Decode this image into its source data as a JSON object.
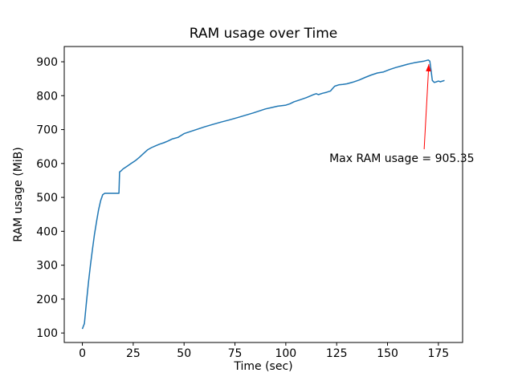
{
  "figure": {
    "title": "RAM usage over Time"
  },
  "chart_data": {
    "type": "line",
    "title": "RAM usage over Time",
    "xlabel": "Time (sec)",
    "ylabel": "RAM usage (MiB)",
    "xlim": [
      -8.9,
      186.9
    ],
    "ylim": [
      72,
      945
    ],
    "x_ticks": [
      0,
      25,
      50,
      75,
      100,
      125,
      150,
      175
    ],
    "y_ticks": [
      100,
      200,
      300,
      400,
      500,
      600,
      700,
      800,
      900
    ],
    "grid": false,
    "legend": "none",
    "line_color": "#1f77b4",
    "line_width": 1.5,
    "series": [
      {
        "name": "RAM usage",
        "points": [
          [
            0,
            112
          ],
          [
            1,
            128
          ],
          [
            2,
            190
          ],
          [
            3,
            248
          ],
          [
            4,
            302
          ],
          [
            5,
            348
          ],
          [
            6,
            392
          ],
          [
            7,
            430
          ],
          [
            8,
            464
          ],
          [
            9,
            490
          ],
          [
            10,
            508
          ],
          [
            11,
            512
          ],
          [
            18,
            512
          ],
          [
            18.3,
            575
          ],
          [
            19,
            578
          ],
          [
            20,
            584
          ],
          [
            22,
            592
          ],
          [
            24,
            600
          ],
          [
            26,
            608
          ],
          [
            28,
            618
          ],
          [
            30,
            629
          ],
          [
            32,
            640
          ],
          [
            34,
            647
          ],
          [
            36,
            652
          ],
          [
            38,
            657
          ],
          [
            40,
            661
          ],
          [
            42,
            666
          ],
          [
            44,
            672
          ],
          [
            47,
            677
          ],
          [
            50,
            688
          ],
          [
            53,
            694
          ],
          [
            56,
            700
          ],
          [
            60,
            708
          ],
          [
            64,
            715
          ],
          [
            68,
            722
          ],
          [
            72,
            728
          ],
          [
            76,
            735
          ],
          [
            80,
            742
          ],
          [
            84,
            749
          ],
          [
            87,
            755
          ],
          [
            90,
            761
          ],
          [
            93,
            765
          ],
          [
            96,
            769
          ],
          [
            100,
            772
          ],
          [
            102,
            776
          ],
          [
            104,
            782
          ],
          [
            107,
            788
          ],
          [
            110,
            794
          ],
          [
            112,
            799
          ],
          [
            114,
            804
          ],
          [
            115,
            806
          ],
          [
            116,
            803
          ],
          [
            118,
            807
          ],
          [
            120,
            810
          ],
          [
            122,
            814
          ],
          [
            123,
            821
          ],
          [
            124,
            828
          ],
          [
            126,
            832
          ],
          [
            128,
            833
          ],
          [
            130,
            835
          ],
          [
            133,
            840
          ],
          [
            136,
            846
          ],
          [
            139,
            854
          ],
          [
            142,
            861
          ],
          [
            145,
            867
          ],
          [
            148,
            870
          ],
          [
            151,
            877
          ],
          [
            154,
            883
          ],
          [
            157,
            888
          ],
          [
            160,
            893
          ],
          [
            163,
            897
          ],
          [
            166,
            900
          ],
          [
            168,
            902
          ],
          [
            170,
            905.35
          ],
          [
            170.8,
            902
          ],
          [
            171.5,
            870
          ],
          [
            172,
            845
          ],
          [
            173,
            839
          ],
          [
            174,
            841
          ],
          [
            175,
            843
          ],
          [
            176,
            841
          ],
          [
            177,
            843
          ],
          [
            178,
            845
          ]
        ]
      }
    ],
    "max_value": 905.35,
    "annotation": {
      "text": "Max RAM usage = 905.35",
      "color": "#ff0000",
      "text_pos": [
        121.4,
        604
      ],
      "arrow_from": [
        168,
        642
      ],
      "arrow_to": [
        170.3,
        893
      ]
    }
  }
}
